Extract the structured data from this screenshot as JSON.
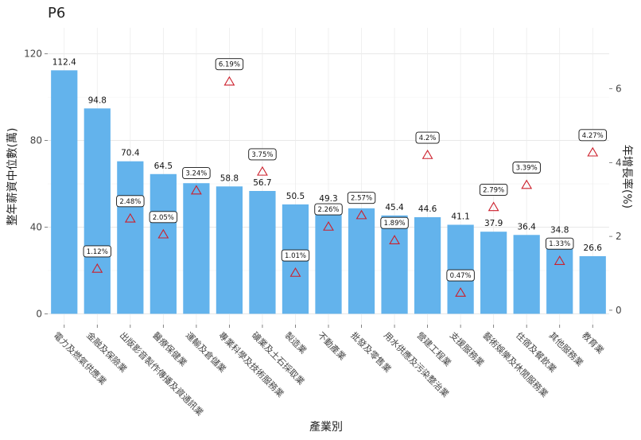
{
  "chart_data": {
    "type": "bar",
    "title": "P6",
    "xlabel": "產業別",
    "ylabel": "整年薪資中位數(萬)",
    "y2label": "年增長率(%)",
    "ylim": [
      -5,
      132
    ],
    "y2lim": [
      -0.39,
      7.65
    ],
    "yticks": [
      0,
      40,
      80,
      120
    ],
    "y2ticks": [
      0,
      2,
      4,
      6
    ],
    "grid": true,
    "categories": [
      "電力及燃氣供應業",
      "金融及保險業",
      "出版影音製作傳播及資通訊業",
      "醫療保健業",
      "運輸及倉儲業",
      "專業科學及技術服務業",
      "礦業及土石採取業",
      "製造業",
      "不動產業",
      "批發及零售業",
      "用水供應及污染整治業",
      "營建工程業",
      "支援服務業",
      "藝術娛樂及休閒服務業",
      "住宿及餐飲業",
      "其他服務業",
      "教育業"
    ],
    "series": [
      {
        "type": "bar",
        "color": "#63b3ec",
        "values": [
          112.4,
          94.8,
          70.4,
          64.5,
          60.3,
          58.8,
          56.7,
          50.5,
          49.3,
          48.7,
          45.4,
          44.6,
          41.1,
          37.9,
          36.4,
          34.8,
          26.6
        ],
        "labels": [
          "112.4",
          "94.8",
          "70.4",
          "64.5",
          "60.3",
          "58.8",
          "56.7",
          "50.5",
          "49.3",
          "48.7",
          "45.4",
          "44.6",
          "41.1",
          "37.9",
          "36.4",
          "34.8",
          "26.6"
        ]
      },
      {
        "type": "scatter",
        "axis": "right",
        "marker": "triangle",
        "color": "#cc1f2b",
        "values": [
          null,
          1.12,
          2.48,
          2.05,
          3.24,
          6.19,
          3.75,
          1.01,
          2.26,
          2.57,
          1.89,
          4.2,
          0.47,
          2.79,
          3.39,
          1.33,
          4.27
        ],
        "labels": [
          "",
          "1.12%",
          "2.48%",
          "2.05%",
          "3.24%",
          "6.19%",
          "3.75%",
          "1.01%",
          "2.26%",
          "2.57%",
          "1.89%",
          "4.2%",
          "0.47%",
          "2.79%",
          "3.39%",
          "1.33%",
          "4.27%"
        ]
      }
    ]
  }
}
